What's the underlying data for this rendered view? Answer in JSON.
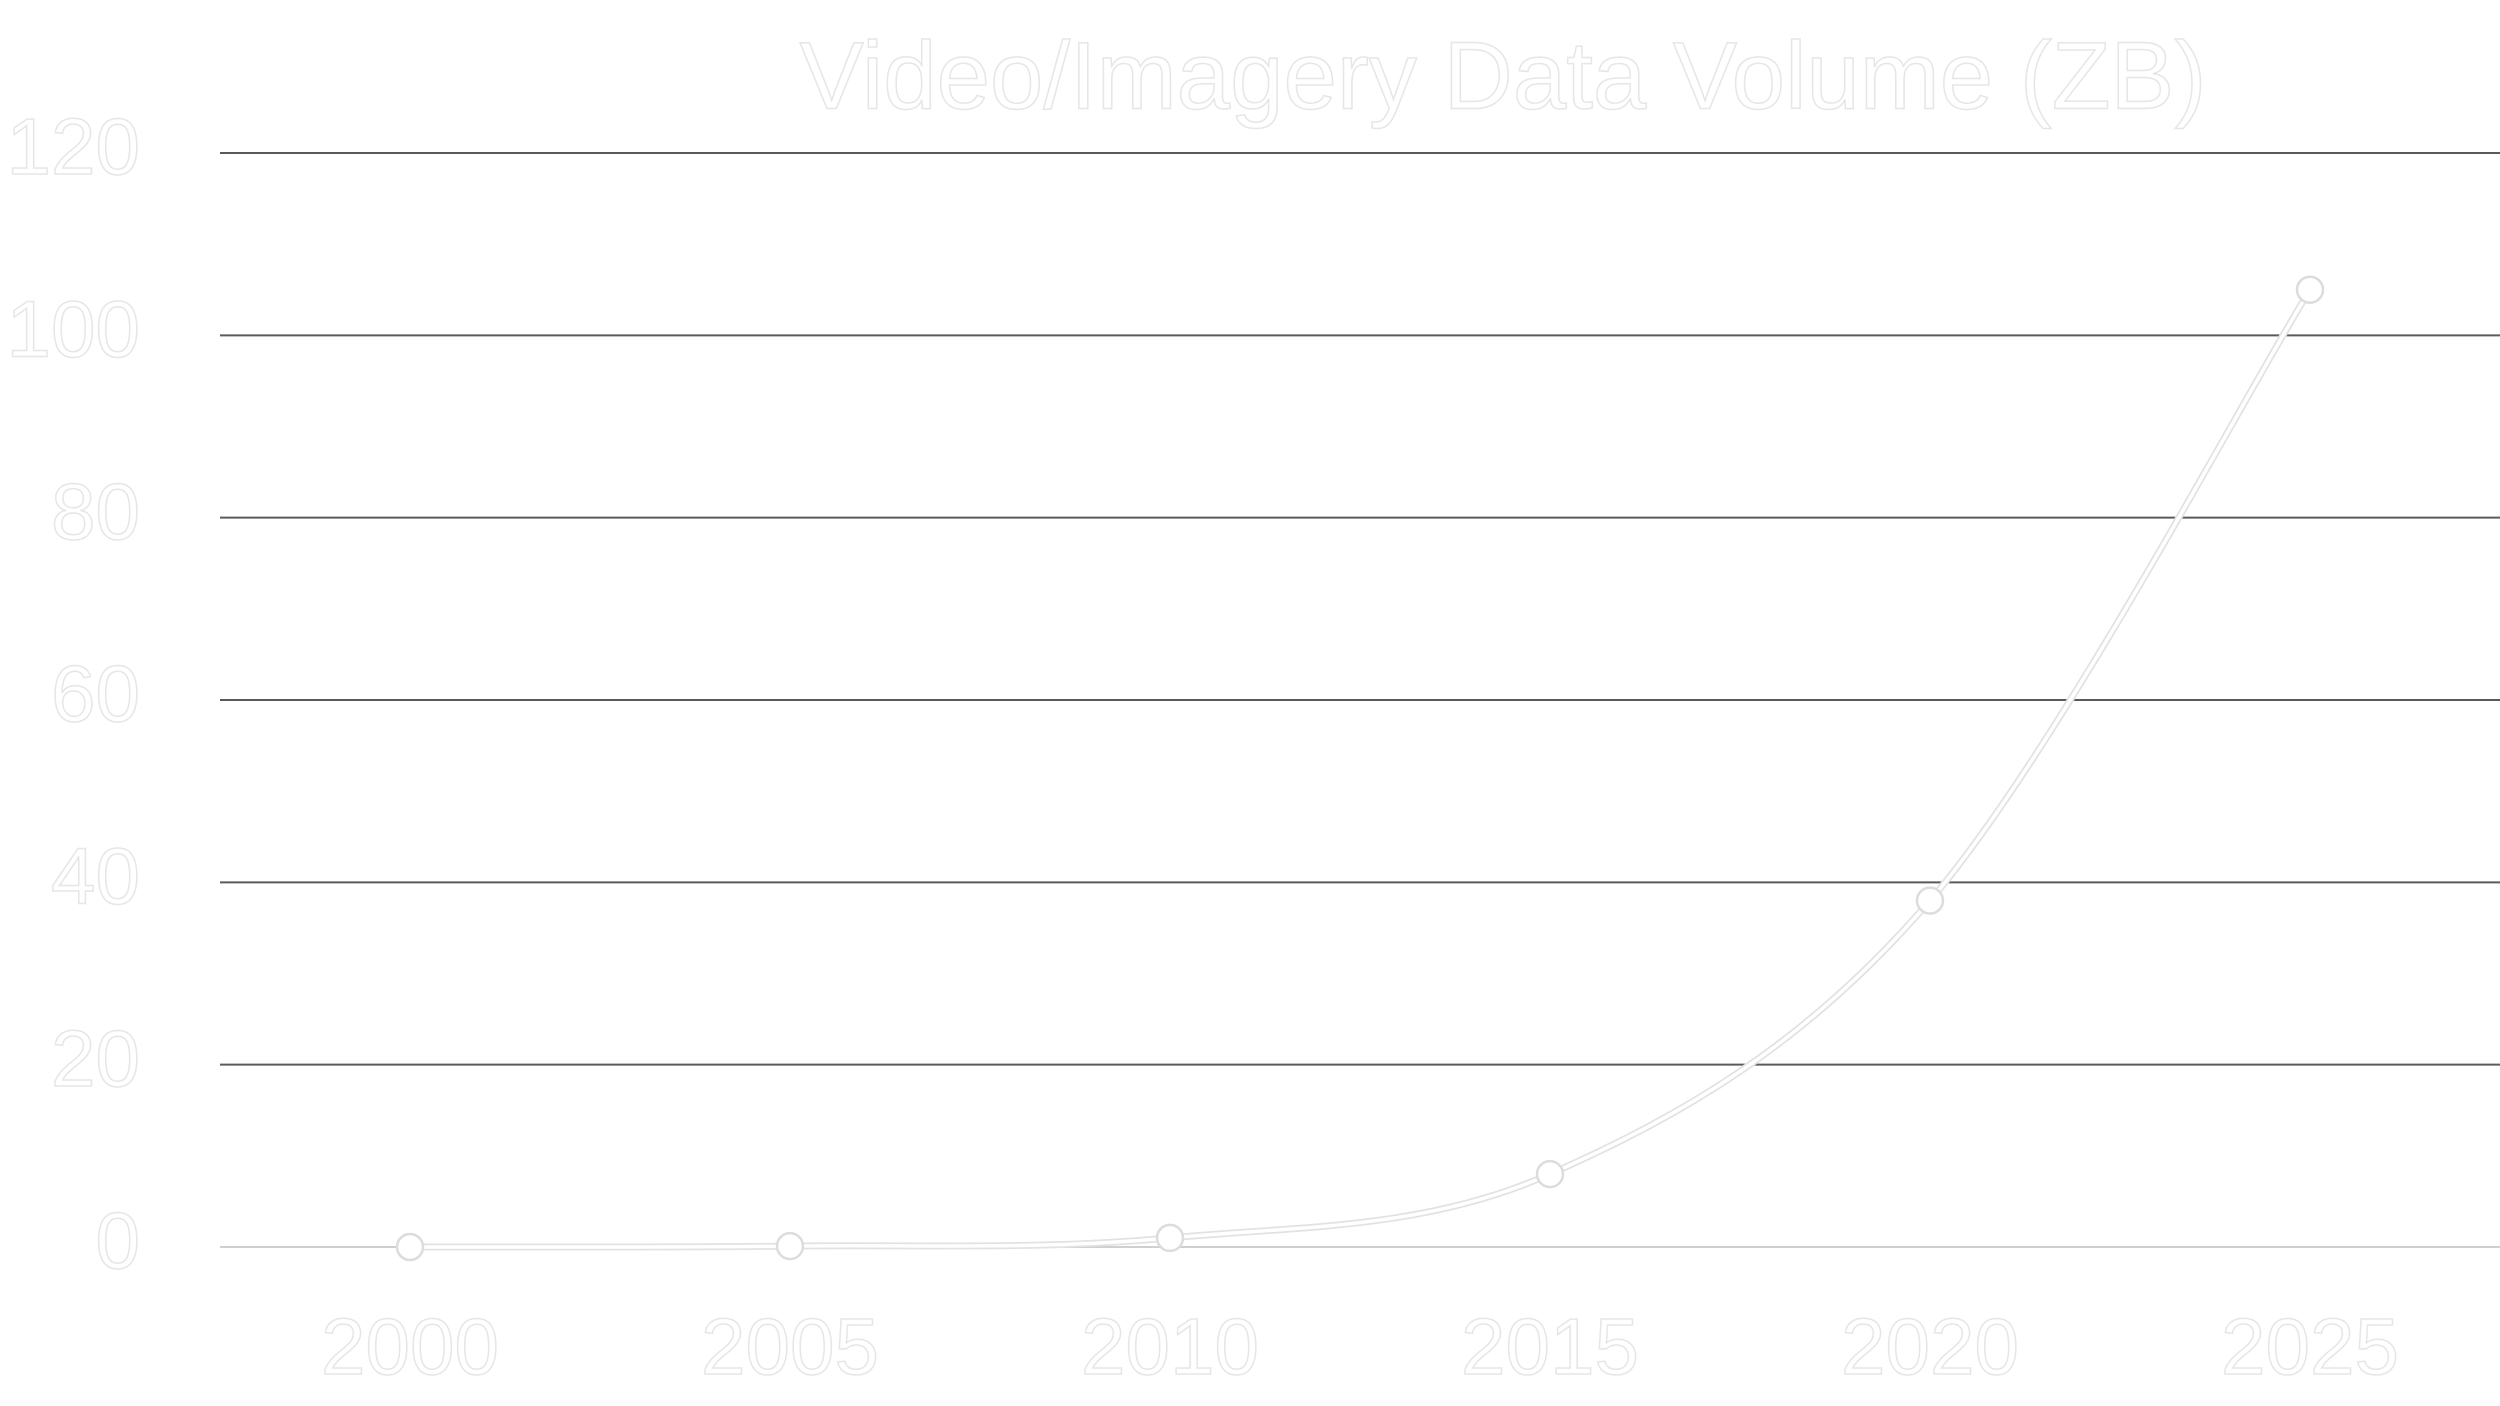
{
  "chart_data": {
    "type": "line",
    "title": "Video/Imagery Data Volume (ZB)",
    "x": [
      2000,
      2005,
      2010,
      2015,
      2020,
      2025
    ],
    "series": [
      {
        "name": "Video/Imagery Data Volume",
        "color": "#ffffff",
        "values": [
          0,
          0.1,
          1,
          8,
          38,
          105
        ]
      }
    ],
    "xlim": [
      1997.5,
      2027.5
    ],
    "xticks": [
      2000,
      2005,
      2010,
      2015,
      2020,
      2025
    ],
    "ylim": [
      0,
      120
    ],
    "yticks": [
      0,
      20,
      40,
      60,
      80,
      100,
      120
    ],
    "grid": true
  }
}
